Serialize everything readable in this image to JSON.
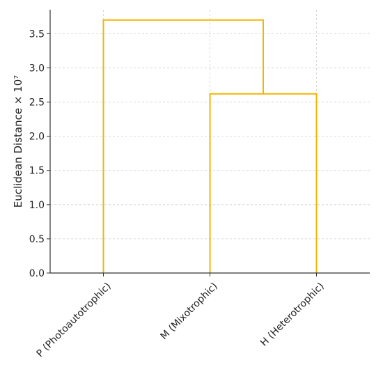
{
  "chart_data": {
    "type": "dendrogram",
    "title": "",
    "xlabel": "",
    "ylabel": "Euclidean Distance × 10⁷",
    "ylim": [
      0,
      3.85
    ],
    "yticks": [
      "0.0",
      "0.5",
      "1.0",
      "1.5",
      "2.0",
      "2.5",
      "3.0",
      "3.5"
    ],
    "ytick_values": [
      0.0,
      0.5,
      1.0,
      1.5,
      2.0,
      2.5,
      3.0,
      3.5
    ],
    "grid": true,
    "leaves": [
      "P (Photoautotrophic)",
      "M (Mixotrophic)",
      "H (Heterotrophic)"
    ],
    "merges": [
      {
        "left": [
          "M (Mixotrophic)"
        ],
        "right": [
          "H (Heterotrophic)"
        ],
        "height": 2.62
      },
      {
        "left": [
          "P (Photoautotrophic)"
        ],
        "right": [
          "M (Mixotrophic)",
          "H (Heterotrophic)"
        ],
        "height": 3.7
      }
    ],
    "link_color": "#f5b400"
  }
}
